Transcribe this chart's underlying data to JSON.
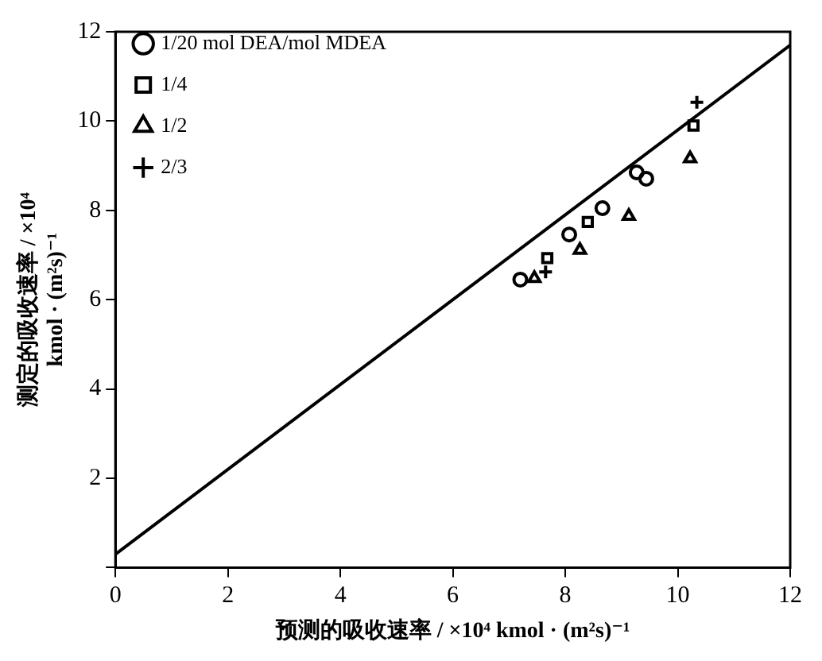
{
  "chart_data": {
    "type": "scatter",
    "xlabel": "预测的吸收速率 / ×10⁴ kmol · (m²s)⁻¹",
    "ylabel": [
      "测定的吸收速率 / ×10⁴",
      "kmol · (m²s)⁻¹"
    ],
    "xlim": [
      0,
      12
    ],
    "ylim": [
      0,
      12
    ],
    "xticks": [
      0,
      2,
      4,
      6,
      8,
      10,
      12
    ],
    "yticks": [
      {
        "value": 0,
        "label": null
      },
      2,
      4,
      6,
      8,
      10,
      12
    ],
    "grid": false,
    "legend": "top left",
    "series": [
      {
        "name": "1/20 mol DEA/mol MDEA",
        "color": "#000000",
        "marker": "circle",
        "x": [
          7.2,
          8.07,
          8.66,
          9.27,
          9.44
        ],
        "values": [
          6.45,
          7.46,
          8.05,
          8.85,
          8.71
        ]
      },
      {
        "name": "1/4",
        "color": "#000000",
        "marker": "square",
        "x": [
          7.68,
          8.4,
          10.28
        ],
        "values": [
          6.93,
          7.74,
          9.9
        ]
      },
      {
        "name": "1/2",
        "color": "#000000",
        "marker": "triangle",
        "x": [
          7.45,
          8.26,
          9.13,
          10.22
        ],
        "values": [
          6.48,
          7.11,
          7.87,
          9.16
        ]
      },
      {
        "name": "2/3",
        "color": "#000000",
        "marker": "cross",
        "x": [
          7.65,
          10.34
        ],
        "values": [
          6.62,
          10.42
        ]
      },
      {
        "type": "line",
        "color": "#000000",
        "marker": "none",
        "line_style": "solid",
        "x": [
          0,
          12
        ],
        "values": [
          0.3,
          11.7
        ]
      }
    ]
  }
}
